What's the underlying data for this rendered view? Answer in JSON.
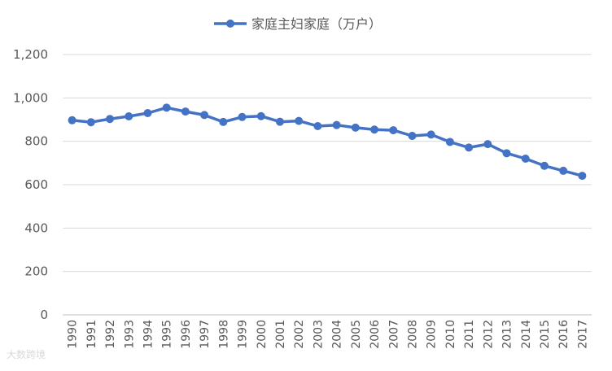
{
  "chart_data": {
    "type": "line",
    "title": "",
    "xlabel": "",
    "ylabel": "",
    "ylim": [
      0,
      1200
    ],
    "yticks": [
      0,
      200,
      400,
      600,
      800,
      1000,
      1200
    ],
    "ytick_labels": [
      "0",
      "200",
      "400",
      "600",
      "800",
      "1,000",
      "1,200"
    ],
    "grid": true,
    "legend_position": "top",
    "categories": [
      "1990",
      "1991",
      "1992",
      "1993",
      "1994",
      "1995",
      "1996",
      "1997",
      "1998",
      "1999",
      "2000",
      "2001",
      "2002",
      "2003",
      "2004",
      "2005",
      "2006",
      "2007",
      "2008",
      "2009",
      "2010",
      "2011",
      "2012",
      "2013",
      "2014",
      "2015",
      "2016",
      "2017"
    ],
    "series": [
      {
        "name": "家庭主妇家庭（万户）",
        "color": "#4472c4",
        "values": [
          897,
          888,
          903,
          915,
          930,
          955,
          937,
          921,
          889,
          912,
          916,
          890,
          894,
          870,
          875,
          863,
          854,
          851,
          825,
          831,
          797,
          771,
          787,
          745,
          720,
          687,
          664,
          641
        ]
      }
    ]
  },
  "watermark": "大数跨境"
}
